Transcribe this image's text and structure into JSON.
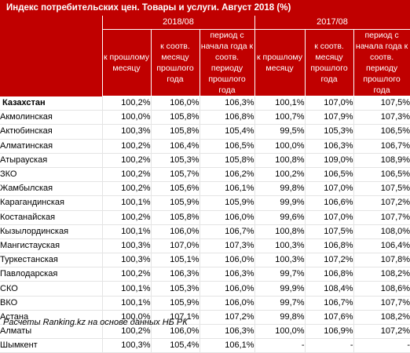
{
  "title": "Индекс потребительских цен. Товары и услуги. Август 2018 (%)",
  "header": {
    "group1": "2018/08",
    "group2": "2017/08",
    "col_prev_month": "к прошлому месяцу",
    "col_same_month": "к соотв. месяцу прошлого года",
    "col_period": "период с начала года к соотв. периоду прошлого года"
  },
  "rows": [
    {
      "name": "Казахстан",
      "v": [
        "100,2%",
        "106,0%",
        "106,3%",
        "100,1%",
        "107,0%",
        "107,5%"
      ]
    },
    {
      "name": "Акмолинская",
      "v": [
        "100,0%",
        "105,8%",
        "106,8%",
        "100,7%",
        "107,9%",
        "107,3%"
      ]
    },
    {
      "name": "Актюбинская",
      "v": [
        "100,3%",
        "105,8%",
        "105,4%",
        "99,5%",
        "105,3%",
        "106,5%"
      ]
    },
    {
      "name": "Алматинская",
      "v": [
        "100,2%",
        "106,4%",
        "106,5%",
        "100,0%",
        "106,3%",
        "106,7%"
      ]
    },
    {
      "name": "Атырауская",
      "v": [
        "100,2%",
        "105,3%",
        "105,8%",
        "100,8%",
        "109,0%",
        "108,9%"
      ]
    },
    {
      "name": "ЗКО",
      "v": [
        "100,2%",
        "105,7%",
        "106,2%",
        "100,2%",
        "106,5%",
        "106,5%"
      ]
    },
    {
      "name": "Жамбылская",
      "v": [
        "100,2%",
        "105,6%",
        "106,1%",
        "99,8%",
        "107,0%",
        "107,5%"
      ]
    },
    {
      "name": "Карагандинская",
      "v": [
        "100,1%",
        "105,9%",
        "105,9%",
        "99,9%",
        "106,6%",
        "107,2%"
      ]
    },
    {
      "name": "Костанайская",
      "v": [
        "100,2%",
        "105,8%",
        "106,0%",
        "99,6%",
        "107,0%",
        "107,7%"
      ]
    },
    {
      "name": "Кызылординская",
      "v": [
        "100,1%",
        "106,0%",
        "106,7%",
        "100,8%",
        "107,5%",
        "108,0%"
      ]
    },
    {
      "name": "Мангистауская",
      "v": [
        "100,3%",
        "107,0%",
        "107,3%",
        "100,3%",
        "106,8%",
        "106,4%"
      ]
    },
    {
      "name": "Туркестанская",
      "v": [
        "100,3%",
        "105,1%",
        "106,0%",
        "100,3%",
        "107,2%",
        "107,8%"
      ]
    },
    {
      "name": "Павлодарская",
      "v": [
        "100,2%",
        "106,3%",
        "106,3%",
        "99,7%",
        "106,8%",
        "108,2%"
      ]
    },
    {
      "name": "СКО",
      "v": [
        "100,1%",
        "105,3%",
        "106,0%",
        "99,9%",
        "108,4%",
        "108,6%"
      ]
    },
    {
      "name": "ВКО",
      "v": [
        "100,1%",
        "105,9%",
        "106,0%",
        "99,7%",
        "106,7%",
        "107,7%"
      ]
    },
    {
      "name": "Астана",
      "v": [
        "100,0%",
        "107,1%",
        "107,2%",
        "99,8%",
        "107,6%",
        "108,2%"
      ]
    },
    {
      "name": "Алматы",
      "v": [
        "100,2%",
        "106,0%",
        "106,3%",
        "100,0%",
        "106,9%",
        "107,2%"
      ]
    },
    {
      "name": "Шымкент",
      "v": [
        "100,3%",
        "105,4%",
        "106,1%",
        "-",
        "-",
        "-"
      ]
    }
  ],
  "footer": "Расчеты Ranking.kz на основе данных НБ РК",
  "colors": {
    "header_bg": "#c00000",
    "header_text": "#ffffff"
  }
}
